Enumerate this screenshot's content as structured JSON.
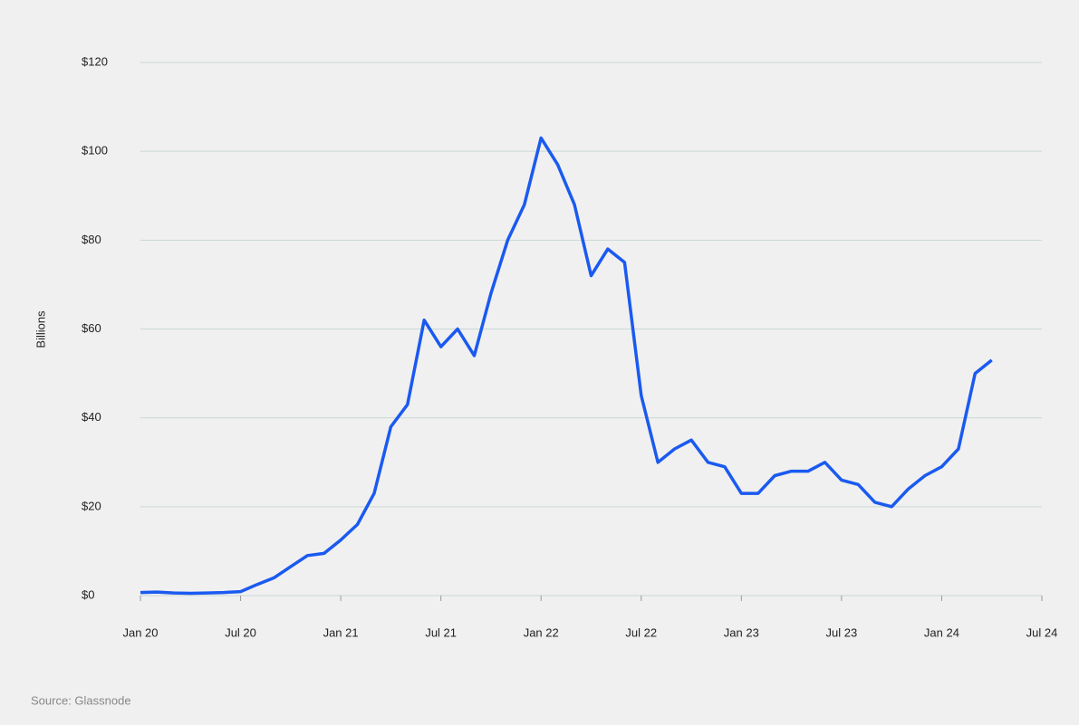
{
  "chart_data": {
    "type": "line",
    "y_label": "Billions",
    "source": "Source: Glassnode",
    "x": [
      "2020-01",
      "2020-02",
      "2020-03",
      "2020-04",
      "2020-05",
      "2020-06",
      "2020-07",
      "2020-08",
      "2020-09",
      "2020-10",
      "2020-11",
      "2020-12",
      "2021-01",
      "2021-02",
      "2021-03",
      "2021-04",
      "2021-05",
      "2021-06",
      "2021-07",
      "2021-08",
      "2021-09",
      "2021-10",
      "2021-11",
      "2021-12",
      "2022-01",
      "2022-02",
      "2022-03",
      "2022-04",
      "2022-05",
      "2022-06",
      "2022-07",
      "2022-08",
      "2022-09",
      "2022-10",
      "2022-11",
      "2022-12",
      "2023-01",
      "2023-02",
      "2023-03",
      "2023-04",
      "2023-05",
      "2023-06",
      "2023-07",
      "2023-08",
      "2023-09",
      "2023-10",
      "2023-11",
      "2023-12",
      "2024-01",
      "2024-02",
      "2024-03",
      "2024-04"
    ],
    "series": [
      {
        "name": "Billions",
        "color": "#1a5af0",
        "values": [
          0.7,
          0.8,
          0.6,
          0.5,
          0.6,
          0.7,
          0.9,
          2.5,
          4,
          6.5,
          9,
          9.5,
          12.5,
          16,
          23,
          38,
          43,
          62,
          56,
          60,
          54,
          68,
          80,
          88,
          103,
          97,
          88,
          72,
          78,
          75,
          45,
          30,
          33,
          35,
          30,
          29,
          23,
          23,
          27,
          28,
          28,
          30,
          26,
          25,
          21,
          20,
          24,
          27,
          29,
          33,
          50,
          53
        ]
      }
    ],
    "xlim": [
      "2020-01",
      "2024-07"
    ],
    "xticks": [
      {
        "value": "2020-01",
        "label": "Jan 20"
      },
      {
        "value": "2020-07",
        "label": "Jul 20"
      },
      {
        "value": "2021-01",
        "label": "Jan 21"
      },
      {
        "value": "2021-07",
        "label": "Jul 21"
      },
      {
        "value": "2022-01",
        "label": "Jan 22"
      },
      {
        "value": "2022-07",
        "label": "Jul 22"
      },
      {
        "value": "2023-01",
        "label": "Jan 23"
      },
      {
        "value": "2023-07",
        "label": "Jul 23"
      },
      {
        "value": "2024-01",
        "label": "Jan 24"
      },
      {
        "value": "2024-07",
        "label": "Jul 24"
      }
    ],
    "ylim": [
      0,
      120
    ],
    "yticks": [
      {
        "value": 0,
        "label": "$0"
      },
      {
        "value": 20,
        "label": "$20"
      },
      {
        "value": 40,
        "label": "$40"
      },
      {
        "value": 60,
        "label": "$60"
      },
      {
        "value": 80,
        "label": "$80"
      },
      {
        "value": 100,
        "label": "$100"
      },
      {
        "value": 120,
        "label": "$120"
      }
    ],
    "grid": true
  }
}
